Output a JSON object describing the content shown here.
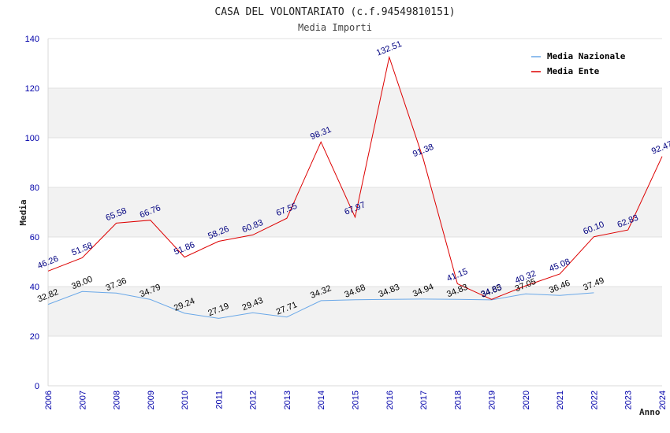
{
  "chart_data": {
    "type": "line",
    "title": "CASA DEL VOLONTARIATO (c.f.94549810151)",
    "subtitle": "Media Importi",
    "xlabel": "Anno",
    "ylabel": "Media",
    "ylim": [
      0,
      140
    ],
    "yticks": [
      "0",
      "20",
      "40",
      "60",
      "80",
      "100",
      "120",
      "140"
    ],
    "categories": [
      "2006",
      "2007",
      "2008",
      "2009",
      "2010",
      "2011",
      "2012",
      "2013",
      "2014",
      "2015",
      "2016",
      "2017",
      "2018",
      "2019",
      "2020",
      "2021",
      "2022",
      "2023",
      "2024"
    ],
    "legend_position": "top-right",
    "series": [
      {
        "name": "Media Nazionale",
        "color": "#6aa8e8",
        "label_color": "#000000",
        "values": [
          32.82,
          38.0,
          37.36,
          34.79,
          29.24,
          27.19,
          29.43,
          27.71,
          34.32,
          34.68,
          34.83,
          34.94,
          34.83,
          34.65,
          37.05,
          36.46,
          37.49,
          null,
          null
        ],
        "labels": [
          "32.82",
          "38.00",
          "37.36",
          "34.79",
          "29.24",
          "27.19",
          "29.43",
          "27.71",
          "34.32",
          "34.68",
          "34.83",
          "34.94",
          "34.83",
          "34.65",
          "37.05",
          "36.46",
          "37.49",
          null,
          null
        ]
      },
      {
        "name": "Media Ente",
        "color": "#dd0000",
        "label_color": "#000080",
        "values": [
          46.26,
          51.58,
          65.58,
          66.76,
          51.86,
          58.26,
          60.83,
          67.55,
          98.31,
          67.97,
          132.51,
          91.38,
          41.15,
          34.83,
          40.32,
          45.08,
          60.1,
          62.83,
          92.47
        ],
        "labels": [
          "46.26",
          "51.58",
          "65.58",
          "66.76",
          "51.86",
          "58.26",
          "60.83",
          "67.55",
          "98.31",
          "67.97",
          "132.51",
          "91.38",
          "41.15",
          "34.83",
          "40.32",
          "45.08",
          "60.10",
          "62.83",
          "92.47"
        ]
      }
    ]
  }
}
